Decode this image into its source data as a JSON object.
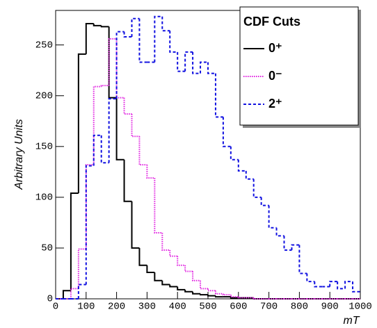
{
  "chart_data": {
    "type": "histogram",
    "legend_title": "CDF Cuts",
    "x_label": "mT",
    "y_label": "Arbitrary Units",
    "bins": [
      0,
      25,
      50,
      75,
      100,
      125,
      150,
      175,
      200,
      225,
      250,
      275,
      300,
      325,
      350,
      375,
      400,
      425,
      450,
      475,
      500,
      525,
      550,
      575,
      600,
      625,
      650,
      675,
      700,
      725,
      750,
      775,
      800,
      825,
      850,
      875,
      900,
      925,
      950,
      975,
      1000
    ],
    "series": [
      {
        "name": "0⁺",
        "color": "#000000",
        "style": "solid",
        "values": [
          0,
          8,
          104,
          241,
          271,
          269,
          268,
          198,
          137,
          96,
          50,
          33,
          26,
          18,
          14,
          12,
          9,
          7,
          5,
          4,
          3,
          2,
          2,
          1,
          1,
          1,
          0,
          0,
          0,
          0,
          0,
          0,
          0,
          0,
          0,
          0,
          0,
          0,
          0,
          0
        ]
      },
      {
        "name": "0⁻",
        "color": "#e020e0",
        "style": "dotted",
        "values": [
          0,
          0,
          10,
          49,
          132,
          209,
          210,
          256,
          198,
          182,
          160,
          132,
          119,
          65,
          48,
          42,
          33,
          27,
          18,
          10,
          8,
          5,
          4,
          2,
          1,
          1,
          0,
          0,
          0,
          0,
          0,
          0,
          0,
          0,
          0,
          0,
          0,
          0,
          0,
          0
        ]
      },
      {
        "name": "2⁺",
        "color": "#1010e0",
        "style": "dashed",
        "values": [
          0,
          0,
          0,
          14,
          131,
          161,
          134,
          197,
          263,
          258,
          276,
          233,
          233,
          278,
          264,
          243,
          224,
          243,
          222,
          233,
          222,
          179,
          150,
          137,
          126,
          118,
          100,
          92,
          70,
          62,
          48,
          53,
          25,
          17,
          12,
          12,
          17,
          10,
          17,
          7
        ]
      }
    ],
    "xlim": [
      0,
      1000
    ],
    "xticks": [
      0,
      100,
      200,
      300,
      400,
      500,
      600,
      700,
      800,
      900,
      1000
    ],
    "ylim": [
      0,
      284
    ],
    "yticks": [
      0,
      50,
      100,
      150,
      200,
      250
    ]
  }
}
